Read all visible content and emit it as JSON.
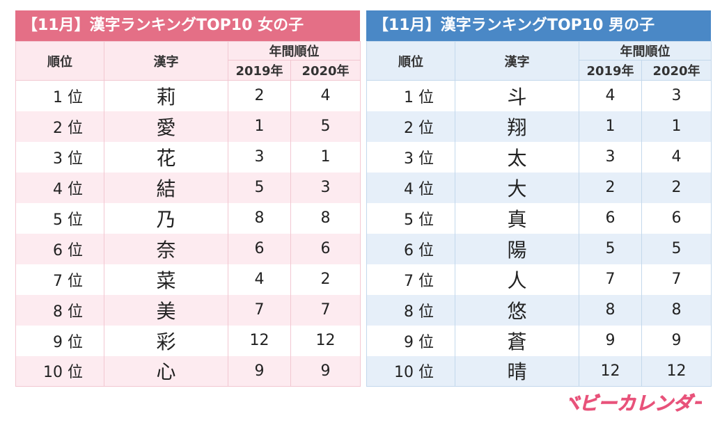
{
  "girls": {
    "title": "【11月】漢字ランキングTOP10 女の子",
    "headers": {
      "rank": "順位",
      "kanji": "漢字",
      "annual": "年間順位",
      "y2019": "2019年",
      "y2020": "2020年"
    },
    "rows": [
      {
        "rank": "1 位",
        "kanji": "莉",
        "y2019": "2",
        "y2020": "4"
      },
      {
        "rank": "2 位",
        "kanji": "愛",
        "y2019": "1",
        "y2020": "5"
      },
      {
        "rank": "3 位",
        "kanji": "花",
        "y2019": "3",
        "y2020": "1"
      },
      {
        "rank": "4 位",
        "kanji": "結",
        "y2019": "5",
        "y2020": "3"
      },
      {
        "rank": "5 位",
        "kanji": "乃",
        "y2019": "8",
        "y2020": "8"
      },
      {
        "rank": "6 位",
        "kanji": "奈",
        "y2019": "6",
        "y2020": "6"
      },
      {
        "rank": "7 位",
        "kanji": "菜",
        "y2019": "4",
        "y2020": "2"
      },
      {
        "rank": "8 位",
        "kanji": "美",
        "y2019": "7",
        "y2020": "7"
      },
      {
        "rank": "9 位",
        "kanji": "彩",
        "y2019": "12",
        "y2020": "12"
      },
      {
        "rank": "10 位",
        "kanji": "心",
        "y2019": "9",
        "y2020": "9"
      }
    ]
  },
  "boys": {
    "title": "【11月】漢字ランキングTOP10 男の子",
    "headers": {
      "rank": "順位",
      "kanji": "漢字",
      "annual": "年間順位",
      "y2019": "2019年",
      "y2020": "2020年"
    },
    "rows": [
      {
        "rank": "1 位",
        "kanji": "斗",
        "y2019": "4",
        "y2020": "3"
      },
      {
        "rank": "2 位",
        "kanji": "翔",
        "y2019": "1",
        "y2020": "1"
      },
      {
        "rank": "3 位",
        "kanji": "太",
        "y2019": "3",
        "y2020": "4"
      },
      {
        "rank": "4 位",
        "kanji": "大",
        "y2019": "2",
        "y2020": "2"
      },
      {
        "rank": "5 位",
        "kanji": "真",
        "y2019": "6",
        "y2020": "6"
      },
      {
        "rank": "6 位",
        "kanji": "陽",
        "y2019": "5",
        "y2020": "5"
      },
      {
        "rank": "7 位",
        "kanji": "人",
        "y2019": "7",
        "y2020": "7"
      },
      {
        "rank": "8 位",
        "kanji": "悠",
        "y2019": "8",
        "y2020": "8"
      },
      {
        "rank": "9 位",
        "kanji": "蒼",
        "y2019": "9",
        "y2020": "9"
      },
      {
        "rank": "10 位",
        "kanji": "晴",
        "y2019": "12",
        "y2020": "12"
      }
    ]
  },
  "logo": {
    "text": "ベビーカレンダー",
    "color": "#e8527a"
  }
}
